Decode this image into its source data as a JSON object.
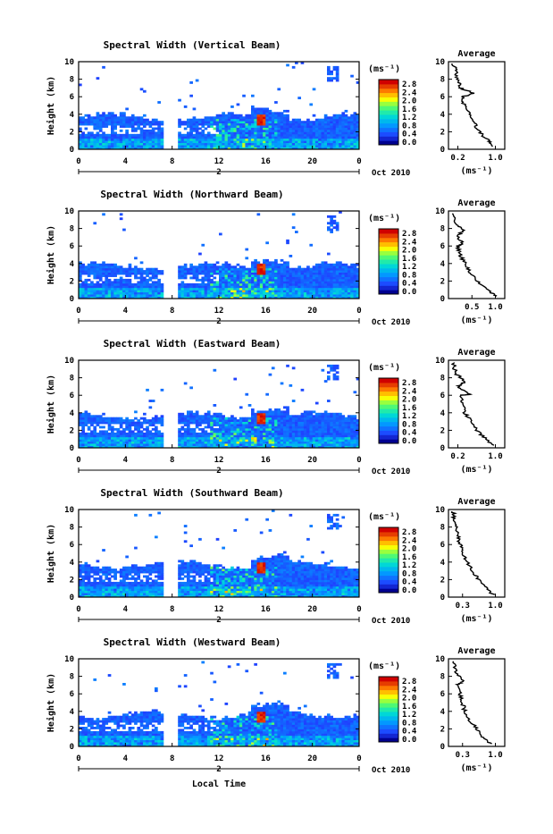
{
  "figure": {
    "x_axis_label": "Local Time",
    "date_label": "Oct 2010",
    "day_label": "2"
  },
  "colorbar": {
    "unit_label": "(ms⁻¹)",
    "ticks": [
      "2.8",
      "2.4",
      "2.0",
      "1.6",
      "1.2",
      "0.8",
      "0.4",
      "0.0"
    ]
  },
  "chart_data": [
    {
      "type": "heatmap",
      "title": "Spectral Width (Vertical Beam)",
      "xlabel": "",
      "ylabel": "Height (km)",
      "x_ticks": [
        "0",
        "4",
        "8",
        "12",
        "16",
        "20",
        "0"
      ],
      "y_ticks": [
        "0",
        "2",
        "4",
        "6",
        "8",
        "10"
      ],
      "xlim": [
        0,
        24
      ],
      "ylim": [
        0,
        10
      ],
      "clim": [
        0,
        3.0
      ],
      "avg_profile": {
        "title": "Average",
        "xlabel": "(ms⁻¹)",
        "x_ticks": [
          "0.2",
          "1.0"
        ],
        "xlim": [
          0,
          1.2
        ],
        "points": [
          [
            0.95,
            0.3
          ],
          [
            0.85,
            1
          ],
          [
            0.65,
            2
          ],
          [
            0.55,
            3
          ],
          [
            0.45,
            4
          ],
          [
            0.33,
            5
          ],
          [
            0.3,
            6
          ],
          [
            0.55,
            6.4
          ],
          [
            0.25,
            7
          ],
          [
            0.2,
            8
          ],
          [
            0.15,
            9
          ],
          [
            0.1,
            9.9
          ]
        ]
      }
    },
    {
      "type": "heatmap",
      "title": "Spectral Width (Northward Beam)",
      "xlabel": "",
      "ylabel": "Height (km)",
      "x_ticks": [
        "0",
        "4",
        "8",
        "12",
        "16",
        "20",
        "0"
      ],
      "y_ticks": [
        "0",
        "2",
        "4",
        "6",
        "8",
        "10"
      ],
      "xlim": [
        0,
        24
      ],
      "ylim": [
        0,
        10
      ],
      "clim": [
        0,
        3.0
      ],
      "avg_profile": {
        "title": "Average",
        "xlabel": "(ms⁻¹)",
        "x_ticks": [
          "0.5",
          "1.0"
        ],
        "xlim": [
          0,
          1.2
        ],
        "points": [
          [
            1.0,
            0.3
          ],
          [
            0.85,
            1
          ],
          [
            0.6,
            2
          ],
          [
            0.45,
            3
          ],
          [
            0.35,
            4
          ],
          [
            0.25,
            5
          ],
          [
            0.2,
            6
          ],
          [
            0.3,
            6.3
          ],
          [
            0.2,
            7
          ],
          [
            0.3,
            7.8
          ],
          [
            0.15,
            8.5
          ],
          [
            0.1,
            9.9
          ]
        ]
      }
    },
    {
      "type": "heatmap",
      "title": "Spectral Width (Eastward Beam)",
      "xlabel": "",
      "ylabel": "Height (km)",
      "x_ticks": [
        "0",
        "4",
        "8",
        "12",
        "16",
        "20",
        "0"
      ],
      "y_ticks": [
        "0",
        "2",
        "4",
        "6",
        "8",
        "10"
      ],
      "xlim": [
        0,
        24
      ],
      "ylim": [
        0,
        10
      ],
      "clim": [
        0,
        3.0
      ],
      "avg_profile": {
        "title": "Average",
        "xlabel": "(ms⁻¹)",
        "x_ticks": [
          "0.2",
          "1.0"
        ],
        "xlim": [
          0,
          1.2
        ],
        "points": [
          [
            0.95,
            0.3
          ],
          [
            0.8,
            1
          ],
          [
            0.6,
            2
          ],
          [
            0.5,
            3
          ],
          [
            0.35,
            4
          ],
          [
            0.3,
            5
          ],
          [
            0.25,
            6
          ],
          [
            0.45,
            6.1
          ],
          [
            0.2,
            7
          ],
          [
            0.35,
            7.6
          ],
          [
            0.15,
            8.5
          ],
          [
            0.1,
            9.9
          ]
        ]
      }
    },
    {
      "type": "heatmap",
      "title": "Spectral Width (Southward Beam)",
      "xlabel": "",
      "ylabel": "Height (km)",
      "x_ticks": [
        "0",
        "4",
        "8",
        "12",
        "16",
        "20",
        "0"
      ],
      "y_ticks": [
        "0",
        "2",
        "4",
        "6",
        "8",
        "10"
      ],
      "xlim": [
        0,
        24
      ],
      "ylim": [
        0,
        10
      ],
      "clim": [
        0,
        3.0
      ],
      "avg_profile": {
        "title": "Average",
        "xlabel": "(ms⁻¹)",
        "x_ticks": [
          "0.3",
          "1.0"
        ],
        "xlim": [
          0,
          1.2
        ],
        "points": [
          [
            0.95,
            0.3
          ],
          [
            0.8,
            1
          ],
          [
            0.65,
            2
          ],
          [
            0.5,
            3
          ],
          [
            0.4,
            4
          ],
          [
            0.3,
            5
          ],
          [
            0.25,
            6
          ],
          [
            0.2,
            7
          ],
          [
            0.15,
            8
          ],
          [
            0.12,
            9
          ],
          [
            0.1,
            9.9
          ]
        ]
      }
    },
    {
      "type": "heatmap",
      "title": "Spectral Width (Westward Beam)",
      "xlabel": "",
      "ylabel": "Height (km)",
      "x_ticks": [
        "0",
        "4",
        "8",
        "12",
        "16",
        "20",
        "0"
      ],
      "y_ticks": [
        "0",
        "2",
        "4",
        "6",
        "8",
        "10"
      ],
      "xlim": [
        0,
        24
      ],
      "ylim": [
        0,
        10
      ],
      "clim": [
        0,
        3.0
      ],
      "avg_profile": {
        "title": "Average",
        "xlabel": "(ms⁻¹)",
        "x_ticks": [
          "0.3",
          "1.0"
        ],
        "xlim": [
          0,
          1.2
        ],
        "points": [
          [
            0.9,
            0.3
          ],
          [
            0.75,
            1
          ],
          [
            0.6,
            2
          ],
          [
            0.45,
            3
          ],
          [
            0.35,
            4
          ],
          [
            0.3,
            5
          ],
          [
            0.25,
            6
          ],
          [
            0.2,
            7
          ],
          [
            0.3,
            7.5
          ],
          [
            0.15,
            8.5
          ],
          [
            0.1,
            9.9
          ]
        ]
      }
    }
  ]
}
